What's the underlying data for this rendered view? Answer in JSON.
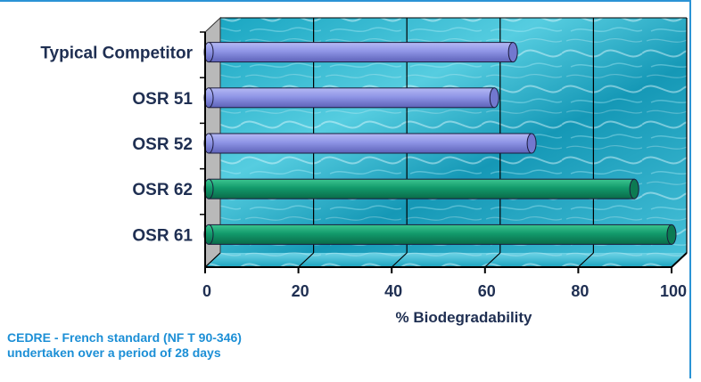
{
  "chart_data": {
    "type": "bar",
    "orientation": "horizontal",
    "categories": [
      "Typical Competitor",
      "OSR 51",
      "OSR 52",
      "OSR 62",
      "OSR 61"
    ],
    "values": [
      66,
      62,
      70,
      92,
      100
    ],
    "bar_colors": [
      "#8f95e6",
      "#8f95e6",
      "#8f95e6",
      "#129a6b",
      "#129a6b"
    ],
    "xlabel": "% Biodegradability",
    "xlim": [
      0,
      100
    ],
    "xticks": [
      0,
      20,
      40,
      60,
      80,
      100
    ],
    "grid": true
  },
  "footnote": {
    "line1": "CEDRE - French standard (NF T 90-346)",
    "line2": "undertaken over a period of 28 days"
  },
  "colors": {
    "water_light": "#7fe0ef",
    "water_dark": "#0e8aa6",
    "side_wall": "#b9b9b9",
    "axis": "#000000",
    "text": "#1f2f52",
    "footnote": "#1c8fd6",
    "border": "#2a93d5"
  }
}
